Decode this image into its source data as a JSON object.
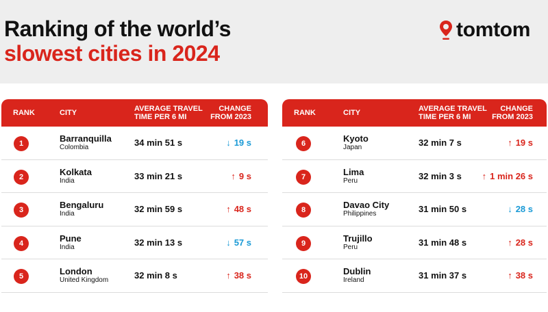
{
  "title": {
    "line1": "Ranking of the world’s",
    "line2": "slowest cities in 2024"
  },
  "logo": {
    "text": "tomtom",
    "icon": "location-pin-icon"
  },
  "colors": {
    "accent": "#d9251c",
    "decrease": "#1a9ad6",
    "header_bg": "#eeeeee"
  },
  "columns": {
    "rank": "RANK",
    "city": "CITY",
    "avg_line1": "AVERAGE TRAVEL",
    "avg_line2": "TIME PER 6 MI",
    "change_line1": "CHANGE",
    "change_line2": "FROM 2023"
  },
  "left": [
    {
      "rank": "1",
      "city": "Barranquilla",
      "country": "Colombia",
      "avg": "34 min 51 s",
      "change": "19 s",
      "direction": "down",
      "arrow": "↓"
    },
    {
      "rank": "2",
      "city": "Kolkata",
      "country": "India",
      "avg": "33 min 21 s",
      "change": "9 s",
      "direction": "up",
      "arrow": "↑"
    },
    {
      "rank": "3",
      "city": "Bengaluru",
      "country": "India",
      "avg": "32 min 59 s",
      "change": "48 s",
      "direction": "up",
      "arrow": "↑"
    },
    {
      "rank": "4",
      "city": "Pune",
      "country": "India",
      "avg": "32 min 13 s",
      "change": "57 s",
      "direction": "down",
      "arrow": "↓"
    },
    {
      "rank": "5",
      "city": "London",
      "country": "United Kingdom",
      "avg": "32 min 8 s",
      "change": "38 s",
      "direction": "up",
      "arrow": "↑"
    }
  ],
  "right": [
    {
      "rank": "6",
      "city": "Kyoto",
      "country": "Japan",
      "avg": "32 min 7 s",
      "change": "19 s",
      "direction": "up",
      "arrow": "↑"
    },
    {
      "rank": "7",
      "city": "Lima",
      "country": "Peru",
      "avg": "32 min 3 s",
      "change": "1 min 26 s",
      "direction": "up",
      "arrow": "↑"
    },
    {
      "rank": "8",
      "city": "Davao City",
      "country": "Philippines",
      "avg": "31 min 50 s",
      "change": "28 s",
      "direction": "down",
      "arrow": "↓"
    },
    {
      "rank": "9",
      "city": "Trujillo",
      "country": "Peru",
      "avg": "31 min 48 s",
      "change": "28 s",
      "direction": "up",
      "arrow": "↑"
    },
    {
      "rank": "10",
      "city": "Dublin",
      "country": "Ireland",
      "avg": "31 min 37 s",
      "change": "38 s",
      "direction": "up",
      "arrow": "↑"
    }
  ]
}
